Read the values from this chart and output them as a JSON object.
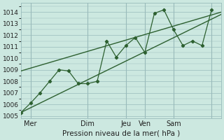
{
  "xlabel": "Pression niveau de la mer( hPa )",
  "ylim": [
    1004.8,
    1014.8
  ],
  "yticks": [
    1005,
    1006,
    1007,
    1008,
    1009,
    1010,
    1011,
    1012,
    1013,
    1014
  ],
  "xlim": [
    0,
    252
  ],
  "day_positions": [
    12,
    84,
    132,
    156,
    192,
    240
  ],
  "day_labels": [
    "Mer",
    "Dim",
    "Jeu",
    "Ven",
    "Sam",
    ""
  ],
  "vline_positions": [
    12,
    84,
    132,
    156,
    192,
    240
  ],
  "bg_color": "#cce8e0",
  "grid_color": "#99bbbb",
  "line_color": "#2d6030",
  "trend1_x": [
    0,
    252
  ],
  "trend1_y": [
    1005.3,
    1013.8
  ],
  "trend2_x": [
    0,
    252
  ],
  "trend2_y": [
    1008.9,
    1014.0
  ],
  "zigzag_x": [
    0,
    12,
    24,
    36,
    48,
    60,
    72,
    84,
    96,
    108,
    120,
    132,
    144,
    156,
    168,
    180,
    192,
    204,
    216,
    228,
    240
  ],
  "zigzag_y": [
    1005.3,
    1006.1,
    1007.0,
    1008.0,
    1009.0,
    1008.9,
    1007.8,
    1007.8,
    1008.0,
    1011.5,
    1010.1,
    1011.1,
    1011.8,
    1010.5,
    1013.9,
    1014.2,
    1012.5,
    1011.1,
    1011.5,
    1011.1,
    1014.2
  ]
}
